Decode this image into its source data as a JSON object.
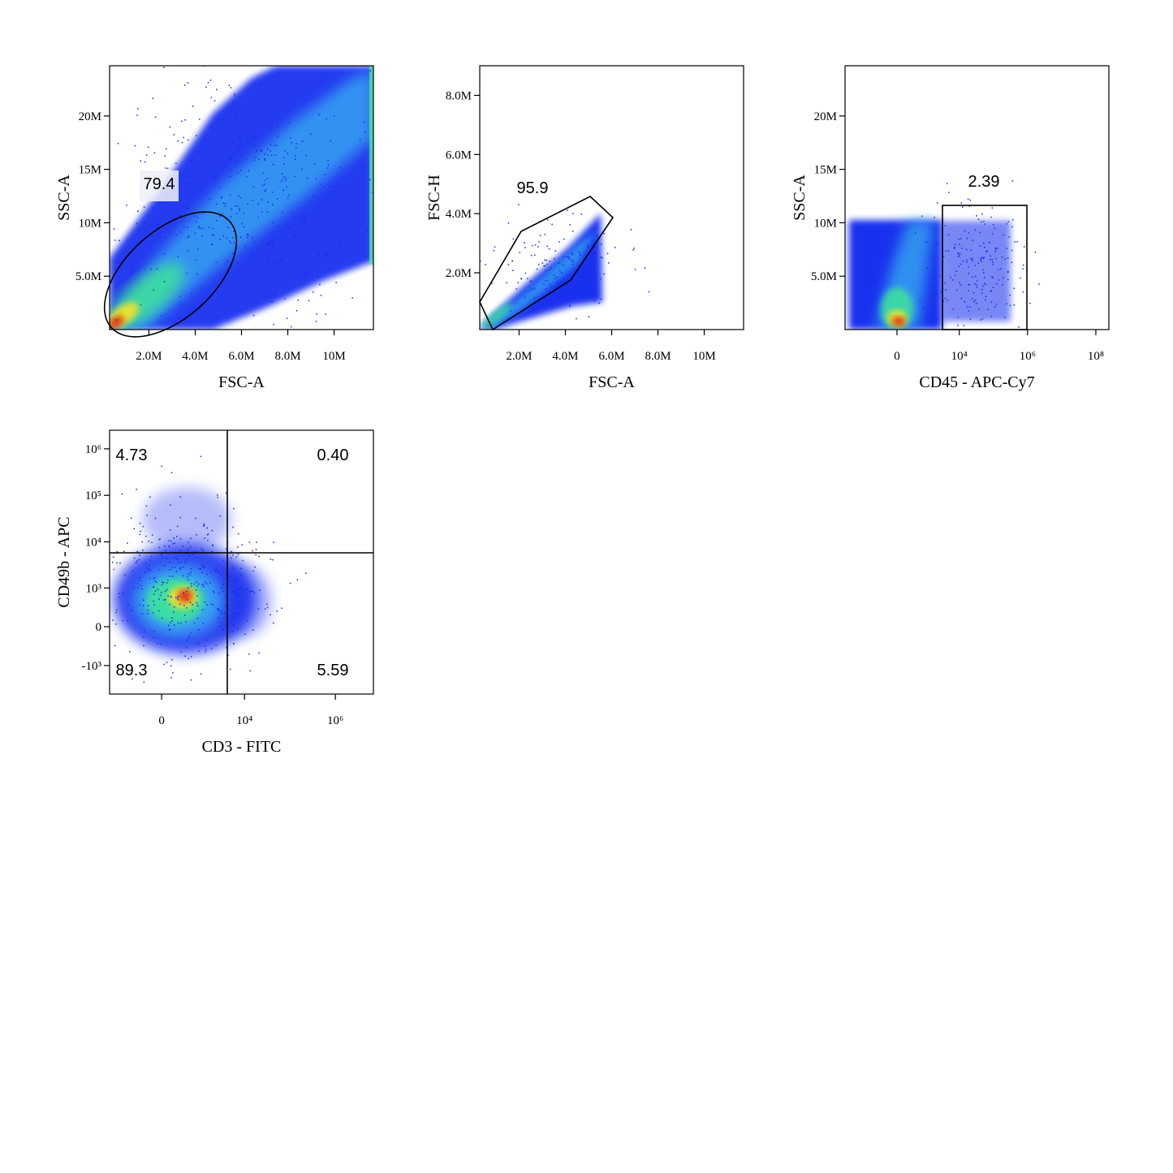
{
  "chart_data": [
    {
      "type": "density",
      "x_label": "FSC-A",
      "y_label": "SSC-A",
      "xscale": "linear",
      "yscale": "linear",
      "xlim": [
        300000,
        11700000
      ],
      "ylim": [
        0,
        24700000
      ],
      "xticks": [
        {
          "value": 2000000,
          "label": "2.0M"
        },
        {
          "value": 4000000,
          "label": "4.0M"
        },
        {
          "value": 6000000,
          "label": "6.0M"
        },
        {
          "value": 8000000,
          "label": "8.0M"
        },
        {
          "value": 10000000,
          "label": "10M"
        }
      ],
      "yticks": [
        {
          "value": 5000000,
          "label": "5.0M"
        },
        {
          "value": 10000000,
          "label": "10M"
        },
        {
          "value": 15000000,
          "label": "15M"
        },
        {
          "value": 20000000,
          "label": "20M"
        }
      ],
      "gate_labels": [
        "79.4"
      ]
    },
    {
      "type": "density",
      "x_label": "FSC-A",
      "y_label": "FSC-H",
      "xscale": "linear",
      "yscale": "linear",
      "xlim": [
        300000,
        11700000
      ],
      "ylim": [
        80000,
        9000000
      ],
      "xticks": [
        {
          "value": 2000000,
          "label": "2.0M"
        },
        {
          "value": 4000000,
          "label": "4.0M"
        },
        {
          "value": 6000000,
          "label": "6.0M"
        },
        {
          "value": 8000000,
          "label": "8.0M"
        },
        {
          "value": 10000000,
          "label": "10M"
        }
      ],
      "yticks": [
        {
          "value": 2000000,
          "label": "2.0M"
        },
        {
          "value": 4000000,
          "label": "4.0M"
        },
        {
          "value": 6000000,
          "label": "6.0M"
        },
        {
          "value": 8000000,
          "label": "8.0M"
        }
      ],
      "gate_labels": [
        "95.9"
      ]
    },
    {
      "type": "density",
      "x_label": "CD45 - APC-Cy7",
      "y_label": "SSC-A",
      "xscale": "biexponential",
      "yscale": "linear",
      "xlim": [
        -4980,
        241000000
      ],
      "ylim": [
        0,
        24700000
      ],
      "xticks": [
        0,
        {
          "value": 10000,
          "label": "10⁴"
        },
        {
          "value": 1000000,
          "label": "10⁶"
        },
        {
          "value": 100000000,
          "label": "10⁸"
        }
      ],
      "yticks": [
        {
          "value": 5000000,
          "label": "5.0M"
        },
        {
          "value": 10000000,
          "label": "10M"
        },
        {
          "value": 15000000,
          "label": "15M"
        },
        {
          "value": 20000000,
          "label": "20M"
        }
      ],
      "gate_labels": [
        "2.39"
      ]
    },
    {
      "type": "density",
      "x_label": "CD3 - FITC",
      "y_label": "CD49b - APC",
      "xscale": "biexponential",
      "yscale": "biexponential",
      "xlim": [
        -2080,
        6860000
      ],
      "ylim": [
        -4200,
        2510000
      ],
      "xticks": [
        0,
        {
          "value": 10000,
          "label": "10⁴"
        },
        {
          "value": 1000000,
          "label": "10⁶"
        }
      ],
      "yticks": [
        {
          "value": -1000,
          "label": "-10³"
        },
        0,
        {
          "value": 1000,
          "label": "10³"
        },
        {
          "value": 10000,
          "label": "10⁴"
        },
        {
          "value": 100000,
          "label": "10⁵"
        },
        {
          "value": 1000000,
          "label": "10⁶"
        }
      ],
      "gate_labels": [
        "4.73",
        "0.40",
        "89.3",
        "5.59"
      ]
    }
  ]
}
